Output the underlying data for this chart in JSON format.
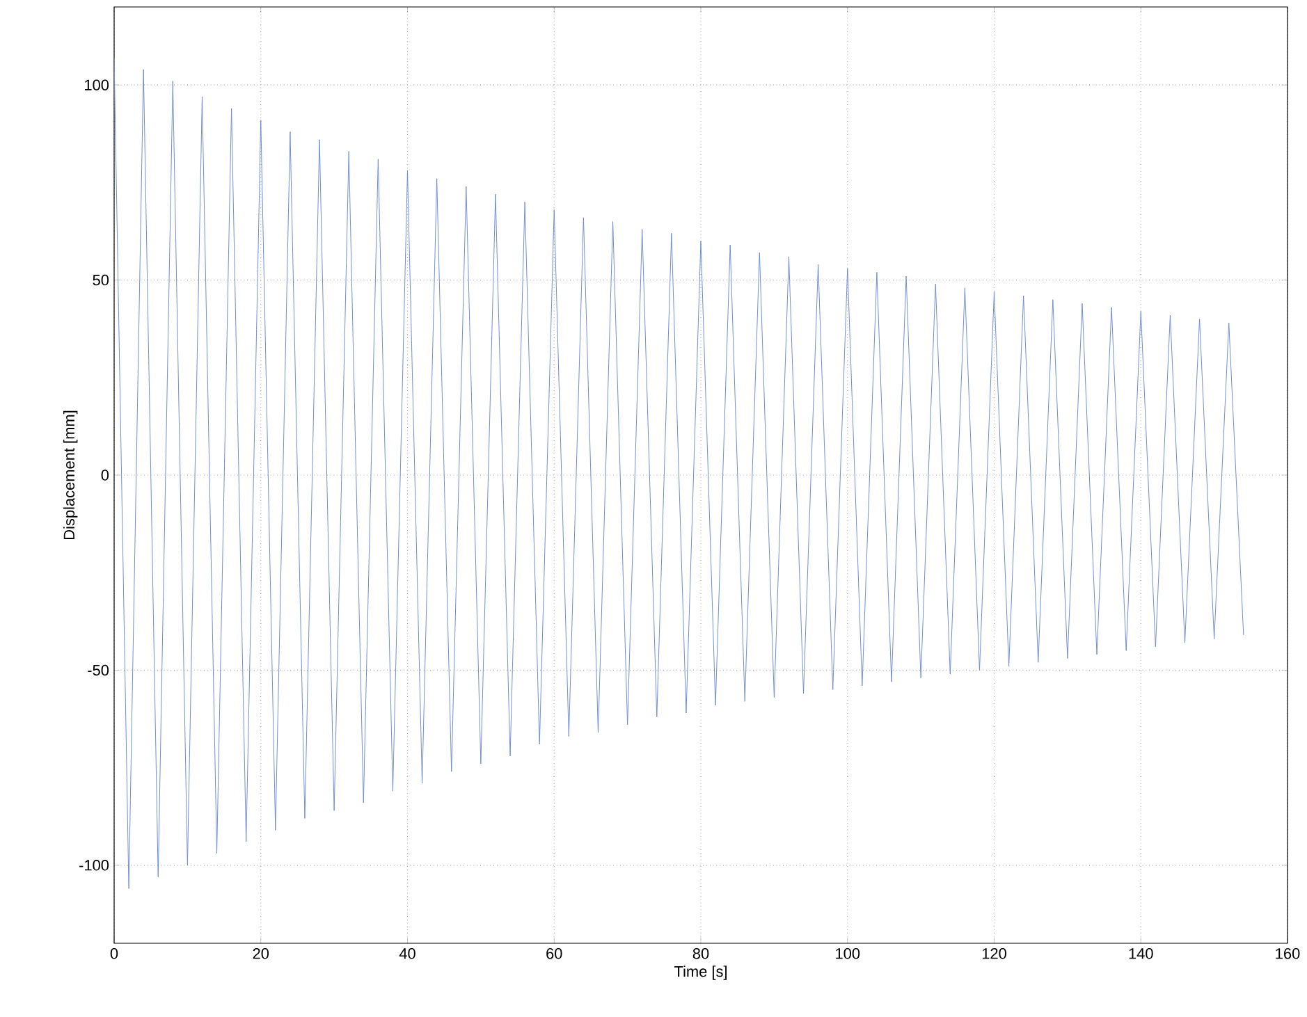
{
  "chart_data": {
    "type": "line",
    "xlabel": "Time [s]",
    "ylabel": "Displacement [mm]",
    "x": [
      0,
      2,
      4,
      6,
      8,
      10,
      12,
      14,
      16,
      18,
      20,
      22,
      24,
      26,
      28,
      30,
      32,
      34,
      36,
      38,
      40,
      42,
      44,
      46,
      48,
      50,
      52,
      54,
      56,
      58,
      60,
      62,
      64,
      66,
      68,
      70,
      72,
      74,
      76,
      78,
      80,
      82,
      84,
      86,
      88,
      90,
      92,
      94,
      96,
      98,
      100,
      102,
      104,
      106,
      108,
      110,
      112,
      114,
      116,
      118,
      120,
      122,
      124,
      126,
      128,
      130,
      132,
      134,
      136,
      138,
      140,
      142,
      144,
      146,
      148,
      150,
      152,
      154
    ],
    "values": [
      107,
      -106,
      104,
      -103,
      101,
      -100,
      97,
      -97,
      94,
      -94,
      91,
      -91,
      88,
      -88,
      86,
      -86,
      83,
      -84,
      81,
      -81,
      78,
      -79,
      76,
      -76,
      74,
      -74,
      72,
      -72,
      70,
      -69,
      68,
      -67,
      66,
      -66,
      65,
      -64,
      63,
      -62,
      62,
      -61,
      60,
      -59,
      59,
      -58,
      57,
      -57,
      56,
      -56,
      54,
      -55,
      53,
      -54,
      52,
      -53,
      51,
      -52,
      49,
      -51,
      48,
      -50,
      47,
      -49,
      46,
      -48,
      45,
      -47,
      44,
      -46,
      43,
      -45,
      42,
      -44,
      41,
      -43,
      40,
      -42,
      39,
      -41
    ],
    "color": "#6f8fd6",
    "line_style": "solid",
    "xlim": [
      0,
      160
    ],
    "ylim": [
      -120,
      120
    ],
    "xticks": [
      0,
      20,
      40,
      60,
      80,
      100,
      120,
      140,
      160
    ],
    "yticks": [
      -100,
      -50,
      0,
      50,
      100
    ],
    "grid": true
  }
}
